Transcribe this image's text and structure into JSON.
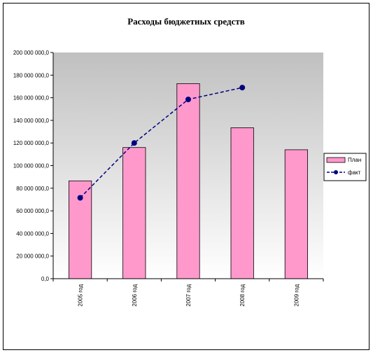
{
  "chart_data": {
    "type": "bar",
    "title": "Расходы бюджетных средств",
    "categories": [
      "2005 год",
      "2006 год",
      "2007 год",
      "2008 год",
      "2009 год"
    ],
    "series": [
      {
        "name": "План",
        "type": "bar",
        "values": [
          86500000,
          116000000,
          172500000,
          133500000,
          114000000
        ],
        "color": "#ff99cc"
      },
      {
        "name": "факт",
        "type": "line",
        "values": [
          71500000,
          120000000,
          158500000,
          169000000,
          null
        ],
        "color": "#000080"
      }
    ],
    "yticks": [
      "0,0",
      "20 000 000,0",
      "40 000 000,0",
      "60 000 000,0",
      "80 000 000,0",
      "100 000 000,0",
      "120 000 000,0",
      "140 000 000,0",
      "160 000 000,0",
      "180 000 000,0",
      "200 000 000,0"
    ],
    "ylim": [
      0,
      200000000
    ],
    "legend_position": "right",
    "grid": false
  }
}
